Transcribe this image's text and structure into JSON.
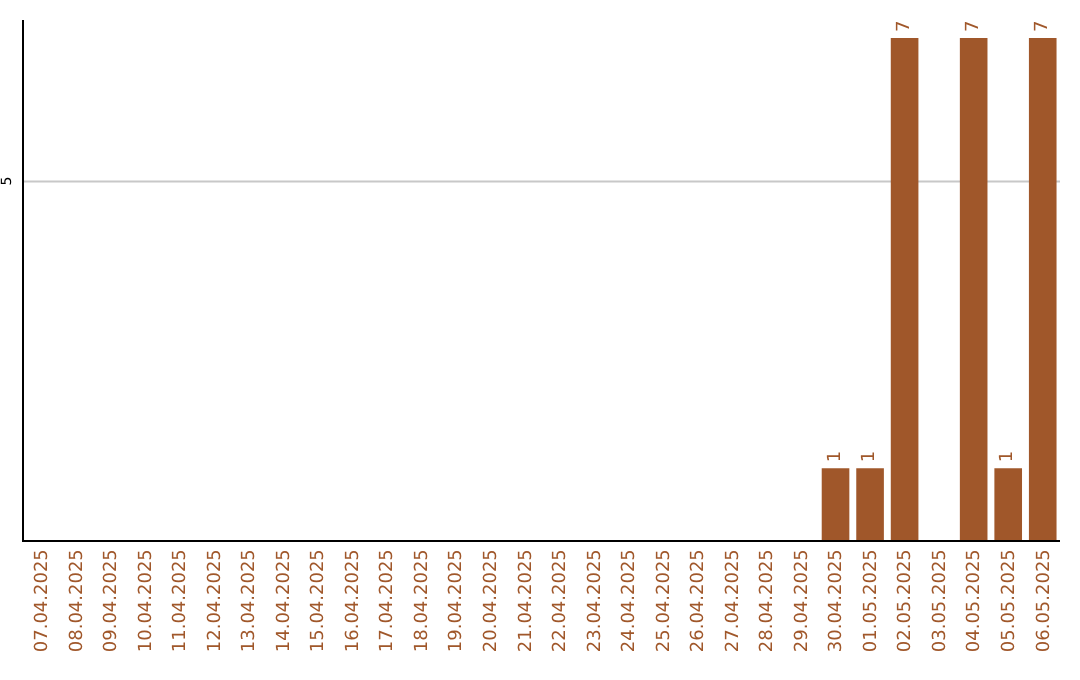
{
  "chart_data": {
    "type": "bar",
    "ylim": [
      0,
      7.25
    ],
    "categories": [
      "07.04.2025",
      "08.04.2025",
      "09.04.2025",
      "10.04.2025",
      "11.04.2025",
      "12.04.2025",
      "13.04.2025",
      "14.04.2025",
      "15.04.2025",
      "16.04.2025",
      "17.04.2025",
      "18.04.2025",
      "19.04.2025",
      "20.04.2025",
      "21.04.2025",
      "22.04.2025",
      "23.04.2025",
      "24.04.2025",
      "25.04.2025",
      "26.04.2025",
      "27.04.2025",
      "28.04.2025",
      "29.04.2025",
      "30.04.2025",
      "01.05.2025",
      "02.05.2025",
      "03.05.2025",
      "04.05.2025",
      "05.05.2025",
      "06.05.2025"
    ],
    "values": [
      null,
      null,
      null,
      null,
      null,
      null,
      null,
      null,
      null,
      null,
      null,
      null,
      null,
      null,
      null,
      null,
      null,
      null,
      null,
      null,
      null,
      null,
      null,
      1,
      1,
      7,
      null,
      7,
      1,
      7
    ],
    "data_labels": true,
    "color": "#a0572a",
    "ref_lines": [
      {
        "axis": "y",
        "value": 5,
        "label": "5",
        "color": "#c8c8c8"
      }
    ]
  }
}
